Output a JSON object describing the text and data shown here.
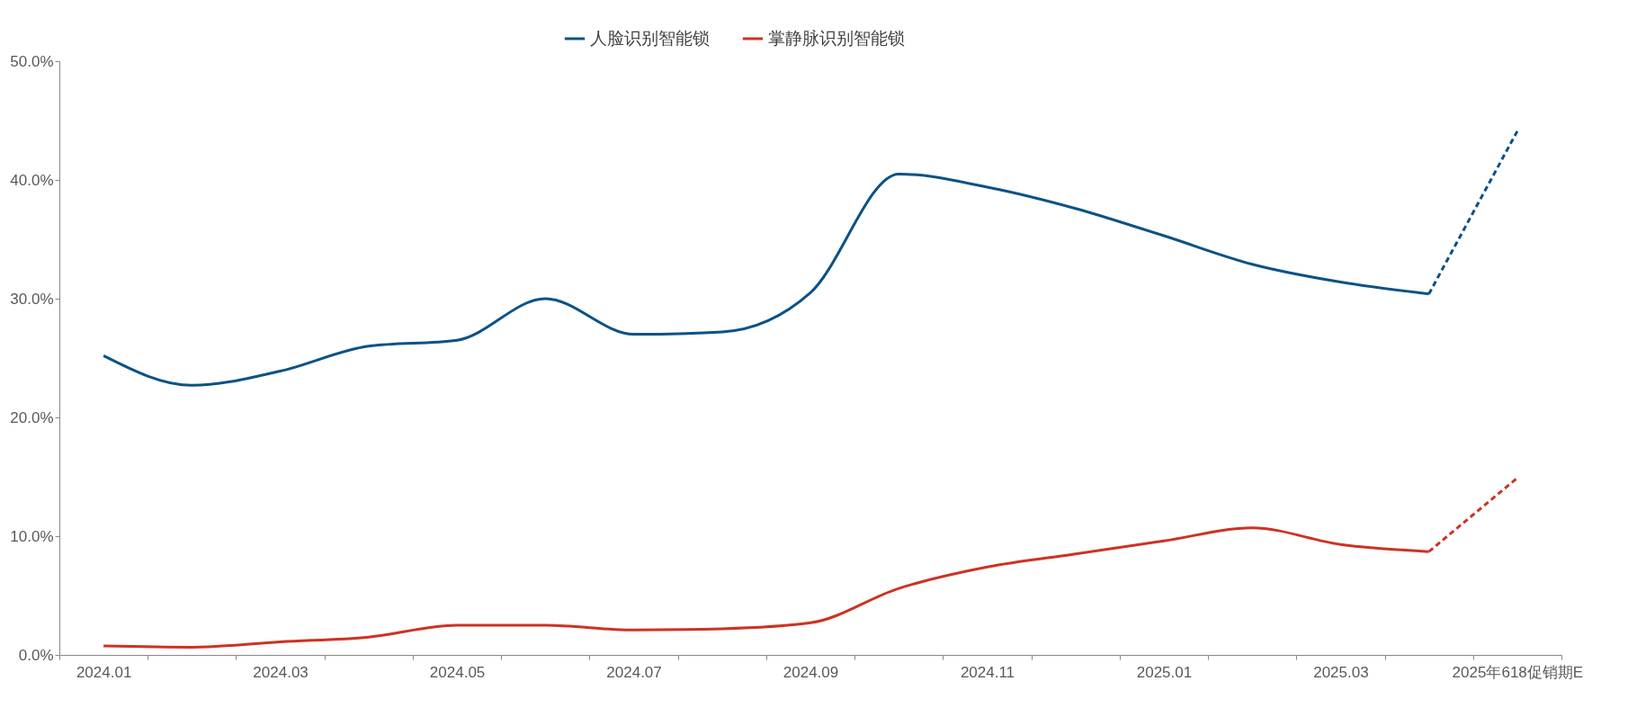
{
  "chart_data": {
    "type": "line",
    "categories": [
      "2024.01",
      null,
      "2024.03",
      null,
      "2024.05",
      null,
      "2024.07",
      null,
      "2024.09",
      null,
      "2024.11",
      null,
      "2025.01",
      null,
      "2025.03",
      null,
      "2025年618促销期E"
    ],
    "series": [
      {
        "name": "人脸识别智能锁",
        "color": "#0b5285",
        "line_style": "solid",
        "values": [
          25.2,
          22.7,
          23.9,
          26.0,
          26.5,
          30.0,
          27.0,
          27.2,
          30.5,
          40.5,
          39.4,
          37.6,
          35.3,
          32.9,
          31.4,
          30.4,
          null
        ]
      },
      {
        "name": "掌静脉识别智能锁",
        "color": "#cc3322",
        "line_style": "solid",
        "values": [
          0.75,
          0.65,
          1.1,
          1.5,
          2.5,
          2.5,
          2.1,
          2.2,
          2.7,
          5.6,
          7.4,
          8.5,
          9.6,
          10.7,
          9.3,
          8.7,
          null
        ]
      },
      {
        "color": "#0b5285",
        "line_style": "dashed",
        "values": [
          null,
          null,
          null,
          null,
          null,
          null,
          null,
          null,
          null,
          null,
          null,
          null,
          null,
          null,
          null,
          30.4,
          44.1
        ]
      },
      {
        "color": "#cc3322",
        "line_style": "dashed",
        "values": [
          null,
          null,
          null,
          null,
          null,
          null,
          null,
          null,
          null,
          null,
          null,
          null,
          null,
          null,
          null,
          8.7,
          14.9
        ]
      }
    ],
    "ylim": [
      0,
      50
    ],
    "yticks": [
      {
        "value": 0,
        "label": "0.0%"
      },
      {
        "value": 10,
        "label": "10.0%"
      },
      {
        "value": 20,
        "label": "20.0%"
      },
      {
        "value": 30,
        "label": "30.0%"
      },
      {
        "value": 40,
        "label": "40.0%"
      },
      {
        "value": 50,
        "label": "50.0%"
      }
    ],
    "grid": false,
    "legend": "top"
  }
}
